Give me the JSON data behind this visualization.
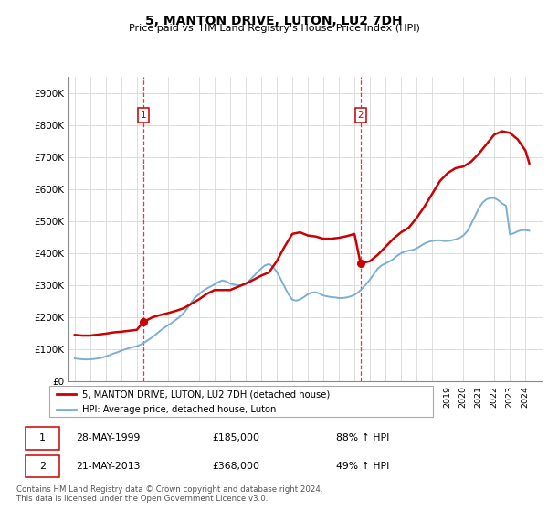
{
  "title": "5, MANTON DRIVE, LUTON, LU2 7DH",
  "subtitle": "Price paid vs. HM Land Registry's House Price Index (HPI)",
  "ylim": [
    0,
    950000
  ],
  "yticks": [
    0,
    100000,
    200000,
    300000,
    400000,
    500000,
    600000,
    700000,
    800000,
    900000
  ],
  "ytick_labels": [
    "£0",
    "£100K",
    "£200K",
    "£300K",
    "£400K",
    "£500K",
    "£600K",
    "£700K",
    "£800K",
    "£900K"
  ],
  "property_color": "#cc0000",
  "hpi_color": "#7bafd4",
  "annotation_color": "#cc0000",
  "vline_color": "#cc0000",
  "legend_label_property": "5, MANTON DRIVE, LUTON, LU2 7DH (detached house)",
  "legend_label_hpi": "HPI: Average price, detached house, Luton",
  "transaction1_date": "28-MAY-1999",
  "transaction1_price": "£185,000",
  "transaction1_hpi": "88% ↑ HPI",
  "transaction2_date": "21-MAY-2013",
  "transaction2_price": "£368,000",
  "transaction2_hpi": "49% ↑ HPI",
  "footer": "Contains HM Land Registry data © Crown copyright and database right 2024.\nThis data is licensed under the Open Government Licence v3.0.",
  "hpi_years": [
    1995.0,
    1995.25,
    1995.5,
    1995.75,
    1996.0,
    1996.25,
    1996.5,
    1996.75,
    1997.0,
    1997.25,
    1997.5,
    1997.75,
    1998.0,
    1998.25,
    1998.5,
    1998.75,
    1999.0,
    1999.25,
    1999.5,
    1999.75,
    2000.0,
    2000.25,
    2000.5,
    2000.75,
    2001.0,
    2001.25,
    2001.5,
    2001.75,
    2002.0,
    2002.25,
    2002.5,
    2002.75,
    2003.0,
    2003.25,
    2003.5,
    2003.75,
    2004.0,
    2004.25,
    2004.5,
    2004.75,
    2005.0,
    2005.25,
    2005.5,
    2005.75,
    2006.0,
    2006.25,
    2006.5,
    2006.75,
    2007.0,
    2007.25,
    2007.5,
    2007.75,
    2008.0,
    2008.25,
    2008.5,
    2008.75,
    2009.0,
    2009.25,
    2009.5,
    2009.75,
    2010.0,
    2010.25,
    2010.5,
    2010.75,
    2011.0,
    2011.25,
    2011.5,
    2011.75,
    2012.0,
    2012.25,
    2012.5,
    2012.75,
    2013.0,
    2013.25,
    2013.5,
    2013.75,
    2014.0,
    2014.25,
    2014.5,
    2014.75,
    2015.0,
    2015.25,
    2015.5,
    2015.75,
    2016.0,
    2016.25,
    2016.5,
    2016.75,
    2017.0,
    2017.25,
    2017.5,
    2017.75,
    2018.0,
    2018.25,
    2018.5,
    2018.75,
    2019.0,
    2019.25,
    2019.5,
    2019.75,
    2020.0,
    2020.25,
    2020.5,
    2020.75,
    2021.0,
    2021.25,
    2021.5,
    2021.75,
    2022.0,
    2022.25,
    2022.5,
    2022.75,
    2023.0,
    2023.25,
    2023.5,
    2023.75,
    2024.0,
    2024.25
  ],
  "hpi_values": [
    72000,
    70000,
    69000,
    68500,
    69000,
    70000,
    72000,
    74000,
    78000,
    82000,
    87000,
    91000,
    96000,
    100000,
    104000,
    107000,
    110000,
    115000,
    122000,
    130000,
    138000,
    148000,
    158000,
    167000,
    175000,
    183000,
    192000,
    201000,
    213000,
    228000,
    246000,
    262000,
    272000,
    282000,
    290000,
    296000,
    303000,
    310000,
    315000,
    312000,
    305000,
    302000,
    300000,
    300000,
    305000,
    315000,
    328000,
    340000,
    352000,
    362000,
    366000,
    358000,
    342000,
    320000,
    295000,
    272000,
    255000,
    252000,
    256000,
    263000,
    272000,
    277000,
    278000,
    274000,
    268000,
    265000,
    263000,
    262000,
    260000,
    260000,
    262000,
    265000,
    270000,
    278000,
    290000,
    303000,
    318000,
    335000,
    352000,
    362000,
    368000,
    374000,
    382000,
    392000,
    400000,
    405000,
    408000,
    410000,
    415000,
    422000,
    430000,
    435000,
    438000,
    440000,
    440000,
    438000,
    438000,
    440000,
    443000,
    447000,
    455000,
    468000,
    490000,
    515000,
    540000,
    558000,
    568000,
    572000,
    572000,
    565000,
    555000,
    548000,
    458000,
    462000,
    468000,
    472000,
    472000,
    470000
  ],
  "property_years": [
    1999.41,
    2013.39
  ],
  "property_values": [
    185000,
    368000
  ],
  "property_line_years": [
    1995.0,
    1995.5,
    1996.0,
    1996.5,
    1997.0,
    1997.5,
    1998.0,
    1998.5,
    1999.0,
    1999.41,
    2000.0,
    2000.5,
    2001.0,
    2001.5,
    2002.0,
    2002.5,
    2003.0,
    2003.5,
    2004.0,
    2004.5,
    2005.0,
    2005.5,
    2006.0,
    2006.5,
    2007.0,
    2007.5,
    2008.0,
    2008.5,
    2009.0,
    2009.5,
    2010.0,
    2010.5,
    2011.0,
    2011.5,
    2012.0,
    2012.5,
    2013.0,
    2013.39,
    2014.0,
    2014.5,
    2015.0,
    2015.5,
    2016.0,
    2016.5,
    2017.0,
    2017.5,
    2018.0,
    2018.5,
    2019.0,
    2019.5,
    2020.0,
    2020.5,
    2021.0,
    2021.5,
    2022.0,
    2022.5,
    2023.0,
    2023.5,
    2024.0,
    2024.25
  ],
  "property_line_values": [
    145000,
    143000,
    143000,
    146000,
    149000,
    153000,
    155000,
    158000,
    161000,
    185000,
    200000,
    207000,
    213000,
    220000,
    228000,
    242000,
    256000,
    273000,
    285000,
    285000,
    285000,
    295000,
    305000,
    317000,
    330000,
    340000,
    375000,
    420000,
    460000,
    465000,
    455000,
    452000,
    445000,
    445000,
    448000,
    453000,
    460000,
    368000,
    375000,
    395000,
    420000,
    445000,
    465000,
    480000,
    510000,
    545000,
    585000,
    625000,
    650000,
    665000,
    670000,
    685000,
    710000,
    740000,
    770000,
    780000,
    775000,
    755000,
    720000,
    680000
  ],
  "vline1_x": 1999.41,
  "vline2_x": 2013.39,
  "marker1_y": 185000,
  "marker2_y": 368000,
  "xlim_left": 1994.6,
  "xlim_right": 2025.1
}
